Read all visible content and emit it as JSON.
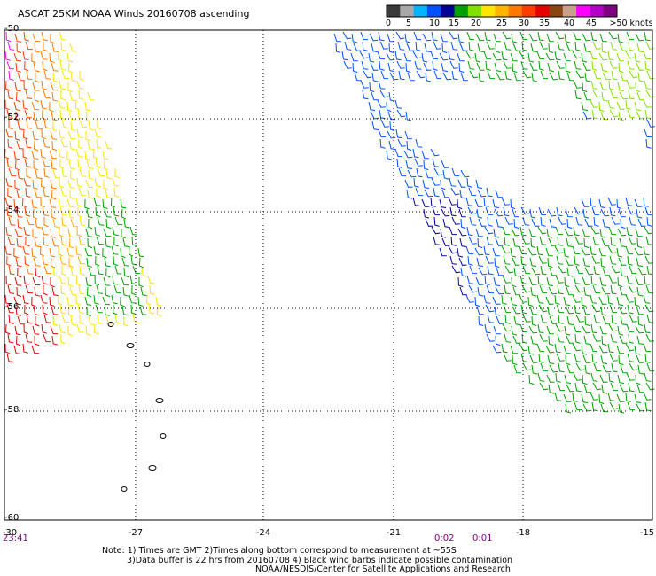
{
  "title": "ASCAT 25KM NOAA Winds 20160708 ascending",
  "legend": {
    "labels": [
      "0",
      "5",
      "10",
      "15",
      "20",
      "25",
      "30",
      "35",
      "40",
      "45",
      ">50 knots"
    ],
    "colors": [
      "#3a3a3a",
      "#a8a8a8",
      "#00b4ff",
      "#0050ff",
      "#000096",
      "#00a000",
      "#80e000",
      "#ffe600",
      "#ffb400",
      "#ff7800",
      "#ff3c00",
      "#e60000",
      "#8b4513",
      "#c8a08c",
      "#ff00ff",
      "#b400c8",
      "#800080"
    ]
  },
  "lat_labels": [
    "-50",
    "-52",
    "-54",
    "-56",
    "-58",
    "-60"
  ],
  "lon_labels": [
    "-30",
    "-27",
    "-24",
    "-21",
    "-18",
    "-15"
  ],
  "time_labels": [
    "23:41",
    "0:02",
    "0:01"
  ],
  "notes": [
    "Note: 1) Times are GMT 2)Times along bottom correspond to measurement at ~55S",
    "3)Data buffer is 22 hrs from 20160708 4) Black wind barbs indicate possible contamination",
    "NOAA/NESDIS/Center for Satellite Applications and Research"
  ]
}
